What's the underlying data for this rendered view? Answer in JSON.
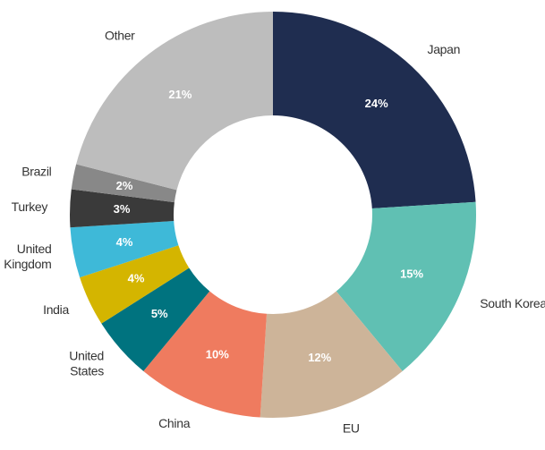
{
  "chart_data": {
    "type": "donut",
    "categories": [
      "Japan",
      "South Korea",
      "EU",
      "China",
      "United States",
      "India",
      "United Kingdom",
      "Turkey",
      "Brazil",
      "Other"
    ],
    "values": [
      24,
      15,
      12,
      10,
      5,
      4,
      4,
      3,
      2,
      21
    ],
    "value_labels": [
      "24%",
      "15%",
      "12%",
      "10%",
      "5%",
      "4%",
      "4%",
      "3%",
      "2%",
      "21%"
    ],
    "colors": [
      "#1f2d50",
      "#60c0b3",
      "#cdb499",
      "#ef7b5f",
      "#00737f",
      "#d4b500",
      "#3eb9d8",
      "#3a3a3a",
      "#888888",
      "#bdbdbd"
    ]
  }
}
